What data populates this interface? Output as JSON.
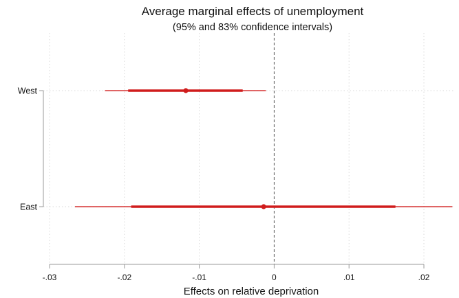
{
  "chart_data": {
    "type": "scatter",
    "title": "Average marginal effects of unemployment",
    "subtitle": "(95% and 83% confidence intervals)",
    "xlabel": "Effects on relative deprivation",
    "ylabel": "",
    "xlim": [
      -0.03,
      0.024
    ],
    "x_ticks": [
      {
        "value": -0.03,
        "label": "-.03"
      },
      {
        "value": -0.02,
        "label": "-.02"
      },
      {
        "value": -0.01,
        "label": "-.01"
      },
      {
        "value": 0,
        "label": "0"
      },
      {
        "value": 0.01,
        "label": ".01"
      },
      {
        "value": 0.02,
        "label": ".02"
      }
    ],
    "reference_line": {
      "x": 0,
      "style": "dashed"
    },
    "grid": "vertical dotted",
    "color": "#d01c1c",
    "categories": [
      "West",
      "East"
    ],
    "estimates": [
      {
        "label": "West",
        "estimate": -0.0118,
        "ci95": [
          -0.0226,
          -0.0011
        ],
        "ci83": [
          -0.0195,
          -0.0042
        ]
      },
      {
        "label": "East",
        "estimate": -0.0014,
        "ci95": [
          -0.0266,
          0.0238
        ],
        "ci83": [
          -0.0191,
          0.0162
        ]
      }
    ]
  }
}
